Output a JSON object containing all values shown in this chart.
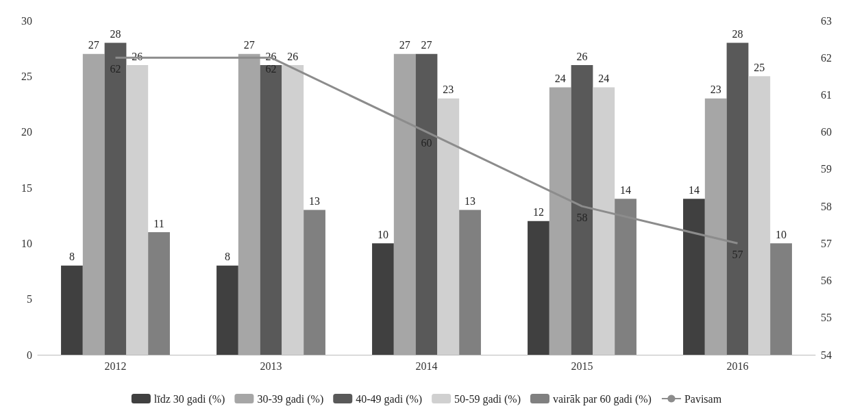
{
  "chart_data": {
    "type": "bar",
    "categories": [
      "2012",
      "2013",
      "2014",
      "2015",
      "2016"
    ],
    "series": [
      {
        "name": "līdz 30 gadi (%)",
        "color": "#404040",
        "values": [
          8,
          8,
          10,
          12,
          14
        ]
      },
      {
        "name": "30-39 gadi (%)",
        "color": "#a6a6a6",
        "values": [
          27,
          27,
          27,
          24,
          23
        ]
      },
      {
        "name": "40-49 gadi (%)",
        "color": "#595959",
        "values": [
          28,
          26,
          27,
          26,
          28
        ]
      },
      {
        "name": "50-59 gadi (%)",
        "color": "#d0d0d0",
        "values": [
          26,
          26,
          23,
          24,
          25
        ]
      },
      {
        "name": "vairāk par 60 gadi (%)",
        "color": "#808080",
        "values": [
          11,
          13,
          13,
          14,
          10
        ]
      },
      {
        "name": "Pavisam",
        "type": "line",
        "axis": "y2",
        "color": "#8c8c8c",
        "values": [
          62,
          62,
          60,
          58,
          57
        ]
      }
    ],
    "ylim": [
      0,
      30
    ],
    "yticks": [
      0,
      5,
      10,
      15,
      20,
      25,
      30
    ],
    "y2lim": [
      54,
      63
    ],
    "y2ticks": [
      54,
      55,
      56,
      57,
      58,
      59,
      60,
      61,
      62,
      63
    ],
    "grid": false,
    "legend": "bottom",
    "data_labels": true,
    "marker": "none"
  }
}
